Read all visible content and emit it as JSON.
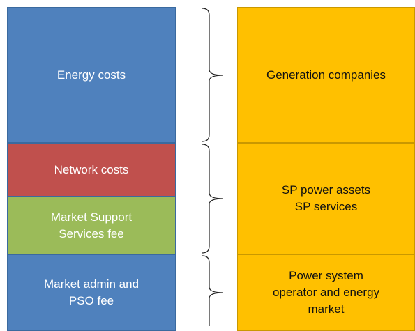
{
  "left_blocks": [
    {
      "lines": [
        "Energy costs"
      ]
    },
    {
      "lines": [
        "Network costs"
      ]
    },
    {
      "lines": [
        "Market Support",
        "Services  fee"
      ]
    },
    {
      "lines": [
        "Market admin and",
        "PSO fee"
      ]
    }
  ],
  "right_blocks": [
    {
      "lines": [
        "Generation companies"
      ]
    },
    {
      "lines": [
        "SP power assets",
        "SP services"
      ]
    },
    {
      "lines": [
        "Power system",
        "operator and energy",
        "market"
      ]
    }
  ]
}
